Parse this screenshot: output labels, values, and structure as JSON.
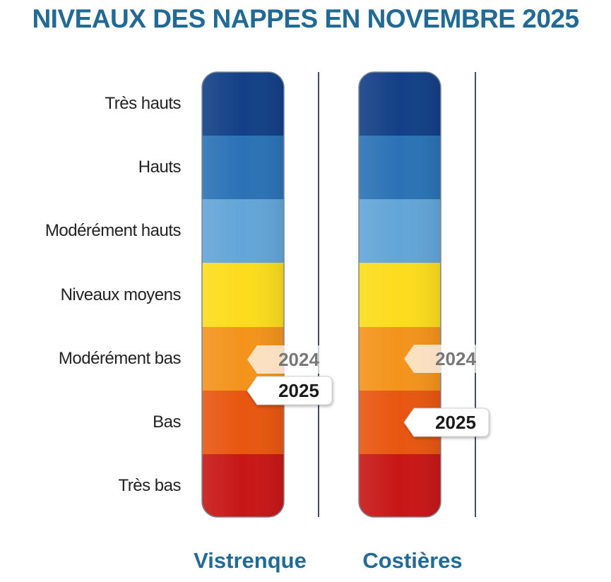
{
  "chart_data": {
    "type": "table",
    "title": "NIVEAUX DES NAPPES EN NOVEMBRE 2025",
    "levels": [
      {
        "name": "Très hauts",
        "color": "#123f86"
      },
      {
        "name": "Hauts",
        "color": "#2a72b5"
      },
      {
        "name": "Modérément hauts",
        "color": "#62a5d8"
      },
      {
        "name": "Niveaux moyens",
        "color": "#fcdc1c"
      },
      {
        "name": "Modérément bas",
        "color": "#f3931b"
      },
      {
        "name": "Bas",
        "color": "#e8560f"
      },
      {
        "name": "Très bas",
        "color": "#c81616"
      }
    ],
    "series": [
      {
        "name": "Vistrenque",
        "markers": [
          {
            "year": "2024",
            "level": "Modérément bas"
          },
          {
            "year": "2025",
            "level": "Modérément bas"
          }
        ]
      },
      {
        "name": "Costières",
        "markers": [
          {
            "year": "2024",
            "level": "Modérément bas"
          },
          {
            "year": "2025",
            "level": "Bas"
          }
        ]
      }
    ]
  }
}
